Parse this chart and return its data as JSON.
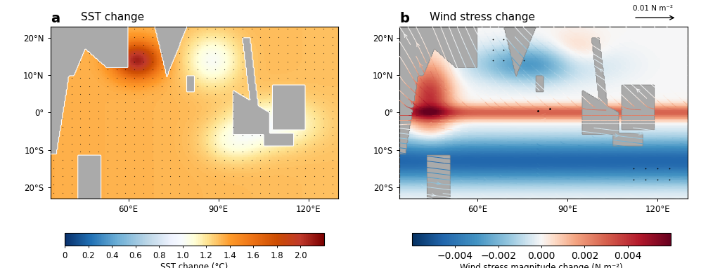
{
  "panel_a_label": "a",
  "panel_b_label": "b",
  "panel_a_title": "SST change",
  "panel_b_title": "Wind stress change",
  "lon_min": 34,
  "lon_max": 130,
  "lat_min": -23,
  "lat_max": 23,
  "lon_ticks": [
    60,
    90,
    120
  ],
  "lat_ticks": [
    20,
    10,
    0,
    -10,
    -20
  ],
  "sst_vmin": 0.0,
  "sst_vmax": 2.2,
  "sst_cbar_ticks": [
    0,
    0.2,
    0.4,
    0.6,
    0.8,
    1.0,
    1.2,
    1.4,
    1.6,
    1.8,
    2.0
  ],
  "sst_cbar_label": "SST change (°C)",
  "wind_vmin": -0.006,
  "wind_vmax": 0.006,
  "wind_cbar_ticks": [
    -0.004,
    -0.002,
    0,
    0.002,
    0.004
  ],
  "wind_cbar_label": "Wind stress magnitude change (N m⁻²)",
  "wind_ref_label": "0.01 N m⁻²",
  "land_color": "#aaaaaa",
  "background": "#ffffff",
  "title_fontsize": 11,
  "tick_fontsize": 8.5,
  "cbar_fontsize": 8.5,
  "dot_size": 1.8,
  "dot_step_lon": 3.0,
  "dot_step_lat": 2.2
}
